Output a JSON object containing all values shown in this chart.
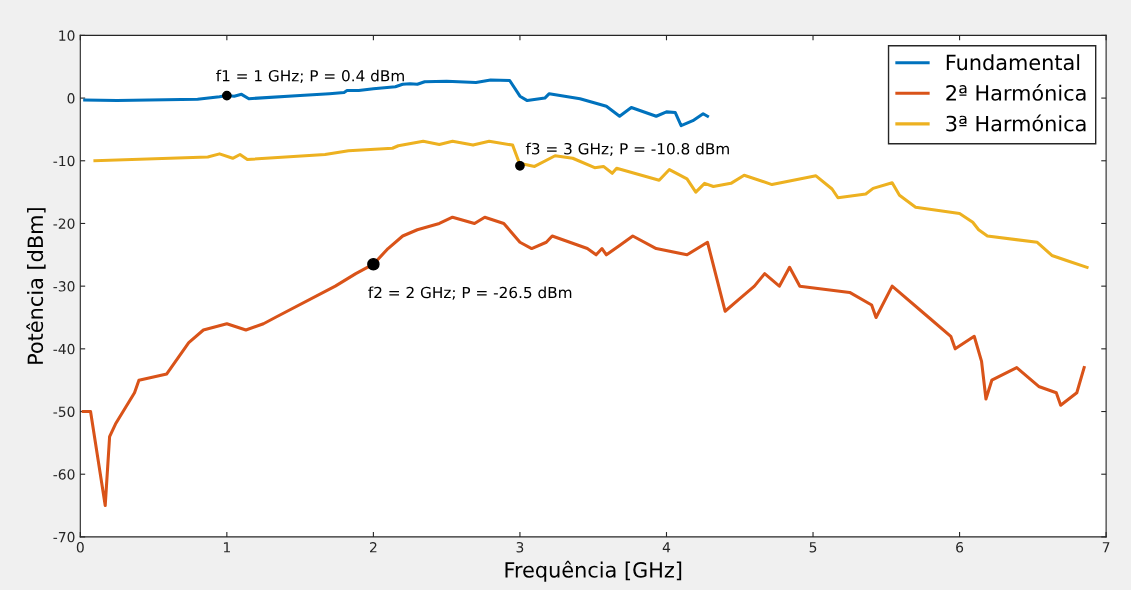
{
  "chart_data": {
    "type": "line",
    "xlabel": "Frequência [GHz]",
    "ylabel": "Potência [dBm]",
    "xlim": [
      0,
      7
    ],
    "ylim": [
      -70,
      10
    ],
    "xticks": [
      0,
      1,
      2,
      3,
      4,
      5,
      6,
      7
    ],
    "yticks": [
      -70,
      -60,
      -50,
      -40,
      -30,
      -20,
      -10,
      0,
      10
    ],
    "grid": false,
    "legend": "top right",
    "marker": "none",
    "line_style": "solid",
    "series": [
      {
        "name": "Fundamental",
        "color": "#0072bd",
        "x": [
          0.03,
          0.25,
          0.8,
          0.95,
          1.0,
          1.05,
          1.1,
          1.15,
          1.5,
          1.7,
          1.8,
          1.82,
          1.9,
          2.0,
          2.15,
          2.2,
          2.25,
          2.3,
          2.35,
          2.5,
          2.7,
          2.8,
          2.93,
          3.0,
          3.05,
          3.17,
          3.2,
          3.41,
          3.59,
          3.68,
          3.76,
          3.93,
          4.0,
          4.06,
          4.1,
          4.18,
          4.25,
          4.28
        ],
        "values": [
          -0.3,
          -0.4,
          -0.2,
          0.2,
          0.4,
          0.3,
          0.6,
          -0.1,
          0.4,
          0.7,
          0.9,
          1.2,
          1.2,
          1.5,
          1.8,
          2.2,
          2.3,
          2.2,
          2.6,
          2.7,
          2.5,
          2.9,
          2.8,
          0.3,
          -0.4,
          0.0,
          0.7,
          -0.1,
          -1.3,
          -2.9,
          -1.5,
          -2.9,
          -2.2,
          -2.3,
          -4.4,
          -3.6,
          -2.5,
          -2.9
        ]
      },
      {
        "name": "2ª Harmónica",
        "color": "#d95319",
        "x": [
          0.02,
          0.07,
          0.17,
          0.2,
          0.24,
          0.37,
          0.4,
          0.59,
          0.74,
          0.84,
          1.0,
          1.13,
          1.25,
          1.33,
          1.74,
          1.88,
          2.0,
          2.1,
          2.2,
          2.3,
          2.45,
          2.54,
          2.69,
          2.76,
          2.89,
          3.0,
          3.08,
          3.18,
          3.22,
          3.46,
          3.52,
          3.56,
          3.59,
          3.68,
          3.77,
          3.93,
          4.14,
          4.28,
          4.4,
          4.5,
          4.6,
          4.67,
          4.77,
          4.84,
          4.91,
          5.25,
          5.4,
          5.43,
          5.54,
          5.79,
          5.94,
          5.97,
          6.1,
          6.15,
          6.18,
          6.22,
          6.39,
          6.54,
          6.66,
          6.69,
          6.8,
          6.85
        ],
        "values": [
          -50,
          -50,
          -65,
          -54,
          -52,
          -47,
          -45,
          -44,
          -39,
          -37,
          -36,
          -37,
          -36,
          -35,
          -30,
          -28,
          -26.5,
          -24,
          -22,
          -21,
          -20,
          -19,
          -20,
          -19,
          -20,
          -23,
          -24,
          -23,
          -22,
          -24,
          -25,
          -24,
          -25,
          -23.5,
          -22,
          -24,
          -25,
          -23,
          -34,
          -32,
          -30,
          -28,
          -30,
          -27,
          -30,
          -31,
          -33,
          -35,
          -30,
          -35,
          -38,
          -40,
          -38,
          -42,
          -48,
          -45,
          -43,
          -46,
          -47,
          -49,
          -47,
          -43
        ]
      },
      {
        "name": "3ª Harmónica",
        "color": "#edb120",
        "x": [
          0.1,
          0.87,
          0.95,
          1.04,
          1.09,
          1.14,
          1.67,
          1.83,
          2.13,
          2.17,
          2.34,
          2.45,
          2.54,
          2.68,
          2.79,
          2.95,
          2.99,
          3.0,
          3.02,
          3.1,
          3.24,
          3.36,
          3.51,
          3.57,
          3.63,
          3.66,
          3.95,
          4.02,
          4.14,
          4.2,
          4.26,
          4.32,
          4.44,
          4.53,
          4.72,
          5.02,
          5.13,
          5.17,
          5.36,
          5.41,
          5.54,
          5.59,
          5.7,
          6.0,
          6.09,
          6.13,
          6.19,
          6.53,
          6.63,
          6.73,
          6.87
        ],
        "values": [
          -10,
          -9.4,
          -8.9,
          -9.6,
          -9.0,
          -9.8,
          -9.0,
          -8.4,
          -8.0,
          -7.6,
          -6.9,
          -7.4,
          -6.9,
          -7.5,
          -6.9,
          -7.5,
          -10,
          -10.8,
          -10.5,
          -10.9,
          -9.2,
          -9.6,
          -11.1,
          -10.9,
          -12.0,
          -11.2,
          -13.1,
          -11.4,
          -12.9,
          -15.0,
          -13.6,
          -14.1,
          -13.6,
          -12.3,
          -13.8,
          -12.4,
          -14.5,
          -15.9,
          -15.3,
          -14.4,
          -13.5,
          -15.5,
          -17.4,
          -18.4,
          -19.8,
          -21.0,
          -22.0,
          -23.0,
          -25.1,
          -25.9,
          -27.0
        ]
      }
    ],
    "annotations": [
      {
        "text": "f1 = 1 GHz; P = 0.4 dBm",
        "x": 1,
        "y": 0.4
      },
      {
        "text": "f2 = 2 GHz; P = -26.5 dBm",
        "x": 2,
        "y": -26.5
      },
      {
        "text": "f3 = 3 GHz; P = -10.8 dBm",
        "x": 3,
        "y": -10.8
      }
    ]
  }
}
